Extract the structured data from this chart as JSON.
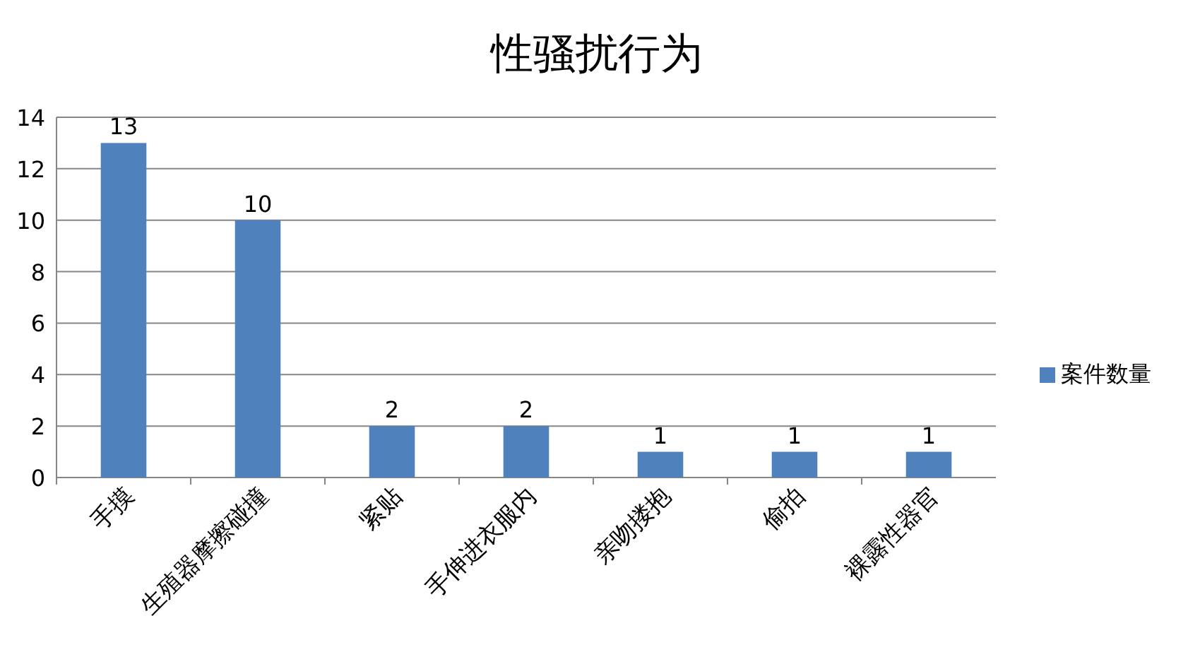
{
  "chart_data": {
    "type": "bar",
    "title": "性骚扰行为",
    "categories": [
      "手摸",
      "生殖器摩擦碰撞",
      "紧贴",
      "手伸进衣服内",
      "亲吻搂抱",
      "偷拍",
      "裸露性器官"
    ],
    "series": [
      {
        "name": "案件数量",
        "color": "#4f81bd",
        "values": [
          13,
          10,
          2,
          2,
          1,
          1,
          1
        ]
      }
    ],
    "ylim": [
      0,
      14
    ],
    "yticks": [
      0,
      2,
      4,
      6,
      8,
      10,
      12,
      14
    ],
    "grid": "y",
    "legend": "right",
    "data_labels": true
  }
}
